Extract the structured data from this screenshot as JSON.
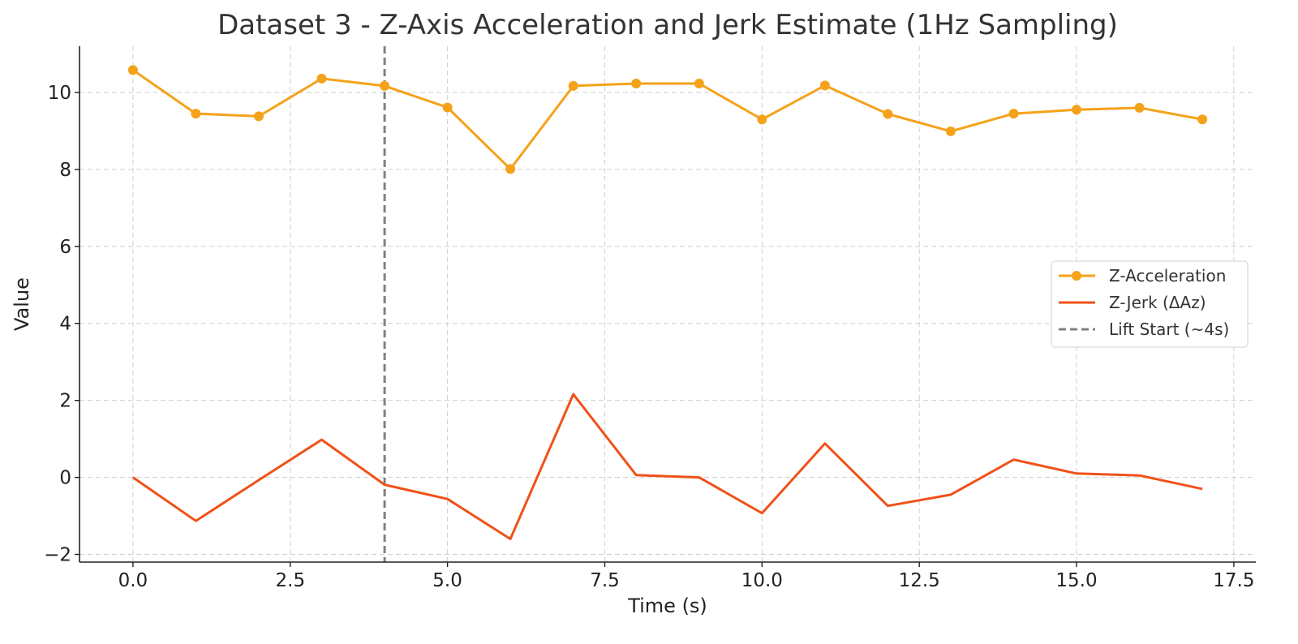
{
  "chart_data": {
    "type": "line",
    "title": "Dataset 3 - Z-Axis Acceleration and Jerk Estimate (1Hz Sampling)",
    "xlabel": "Time (s)",
    "ylabel": "Value",
    "xlim": [
      -0.85,
      17.85
    ],
    "ylim": [
      -2.2,
      11.2
    ],
    "xticks": [
      0.0,
      2.5,
      5.0,
      7.5,
      10.0,
      12.5,
      15.0,
      17.5
    ],
    "xtick_labels": [
      "0.0",
      "2.5",
      "5.0",
      "7.5",
      "10.0",
      "12.5",
      "15.0",
      "17.5"
    ],
    "yticks": [
      -2,
      0,
      2,
      4,
      6,
      8,
      10
    ],
    "ytick_labels": [
      "−2",
      "0",
      "2",
      "4",
      "6",
      "8",
      "10"
    ],
    "grid": true,
    "legend_position": "center-right",
    "x": [
      0,
      1,
      2,
      3,
      4,
      5,
      6,
      7,
      8,
      9,
      10,
      11,
      12,
      13,
      14,
      15,
      16,
      17
    ],
    "series": [
      {
        "name": "Z-Acceleration",
        "color": "#f5a21b",
        "marker": "circle",
        "values": [
          10.58,
          9.45,
          9.38,
          10.36,
          10.17,
          9.61,
          8.01,
          10.17,
          10.23,
          10.23,
          9.3,
          10.18,
          9.44,
          8.99,
          9.45,
          9.55,
          9.6,
          9.3
        ]
      },
      {
        "name": "Z-Jerk (ΔAz)",
        "color": "#ef5219",
        "marker": "none",
        "values": [
          0.0,
          -1.13,
          -0.07,
          0.98,
          -0.19,
          -0.56,
          -1.6,
          2.16,
          0.06,
          0.0,
          -0.93,
          0.88,
          -0.74,
          -0.45,
          0.46,
          0.1,
          0.05,
          -0.3
        ]
      }
    ],
    "vlines": [
      {
        "name": "Lift Start (~4s)",
        "x": 4,
        "color": "#808080",
        "style": "dashed"
      }
    ]
  }
}
